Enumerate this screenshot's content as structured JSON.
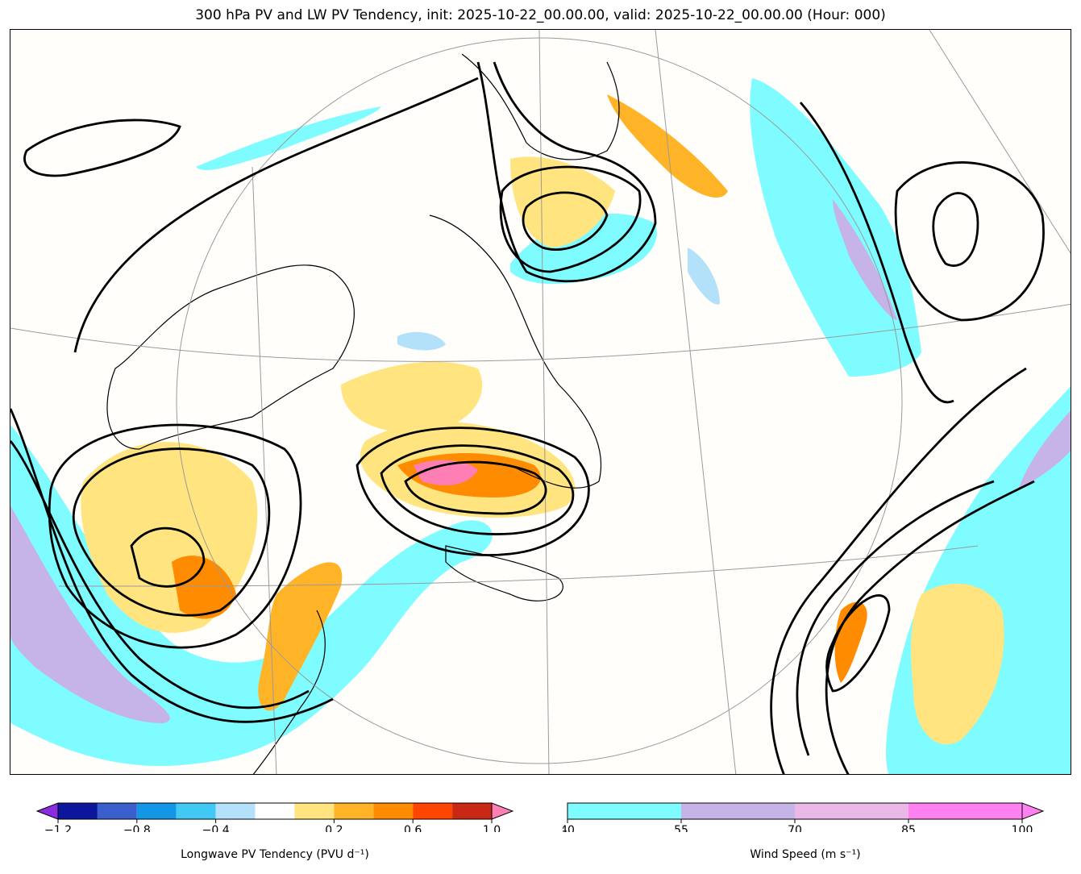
{
  "title": "300 hPa PV and LW PV Tendency, init: 2025-10-22_00.00.00, valid: 2025-10-22_00.00.00 (Hour: 000)",
  "colorbars": {
    "pv_tendency": {
      "label": "Longwave PV Tendency (PVU d⁻¹)",
      "colors": [
        "#0c169c",
        "#3a5fcd",
        "#1496e6",
        "#41c8f5",
        "#b4e1fa",
        "#ffffff",
        "#ffe480",
        "#ffb428",
        "#ff8c00",
        "#ff4500",
        "#c82814"
      ],
      "under_color": "#8b2be2",
      "over_color": "#ff7eb4",
      "ticks": [
        "−1.2",
        "−0.8",
        "−0.4",
        "0.2",
        "0.6",
        "1.0"
      ]
    },
    "wind_speed": {
      "label": "Wind Speed (m s⁻¹)",
      "colors": [
        "#7ffcff",
        "#c6b3e8",
        "#eab8e6",
        "#ff80f0"
      ],
      "ticks": [
        "40",
        "55",
        "70",
        "85",
        "100"
      ]
    }
  },
  "colors": {
    "jet_cyan": "#7ffcff",
    "jet_lavender": "#c6b3e8",
    "tend_yellow": "#ffe480",
    "tend_orange": "#ffb428",
    "tend_darkorange": "#ff8c00",
    "tend_red": "#ff4500",
    "tend_pink": "#ff7eb4",
    "tend_blue": "#41c8f5",
    "tend_lightblue": "#b4e1fa"
  }
}
